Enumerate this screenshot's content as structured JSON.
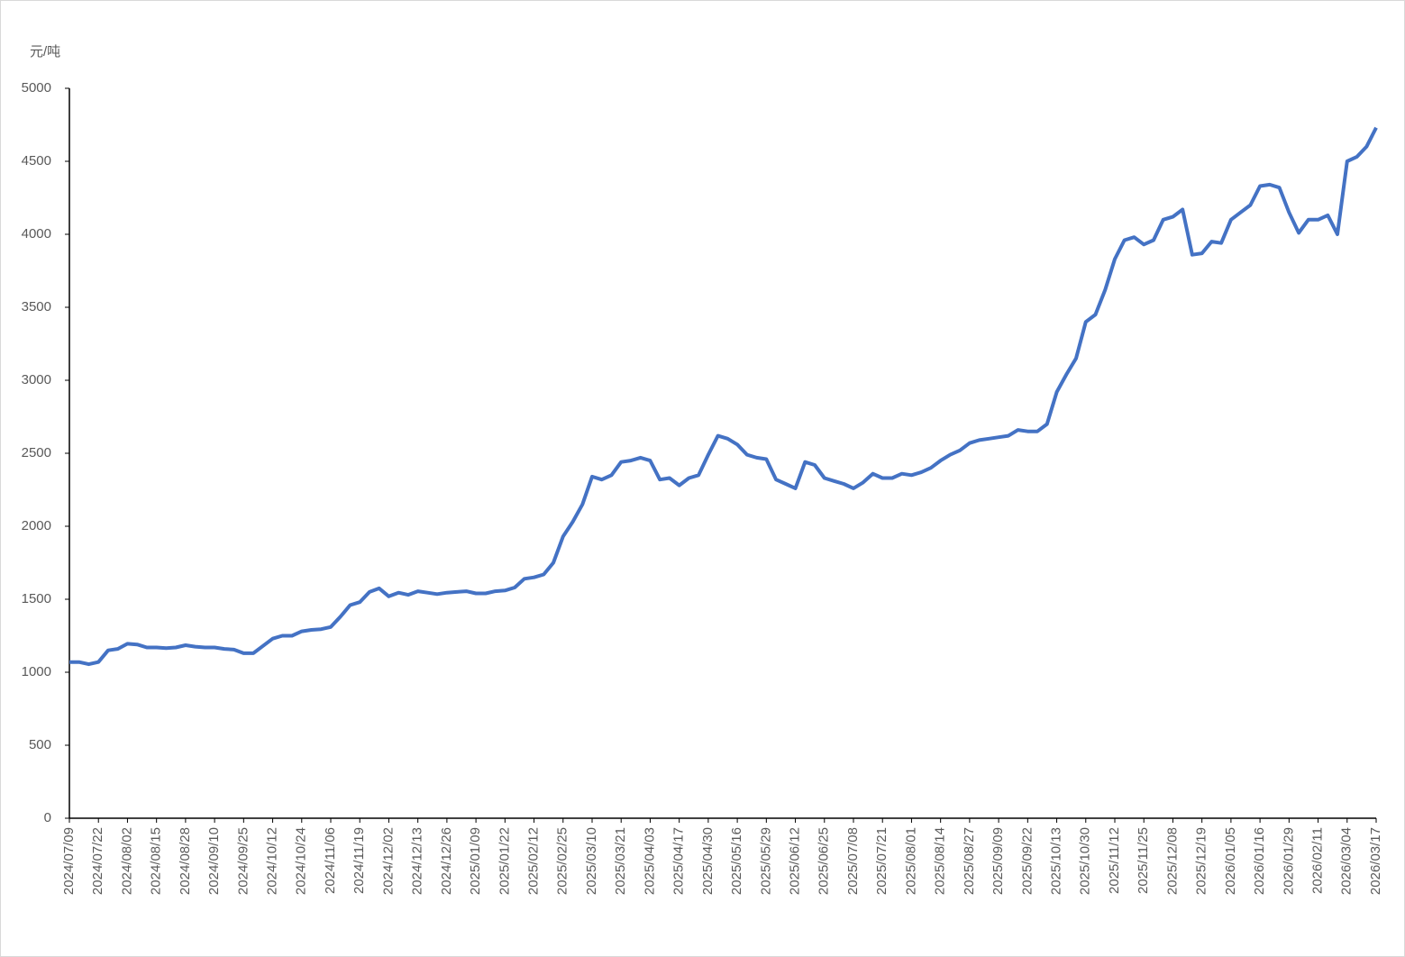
{
  "chart_data": {
    "type": "line",
    "y_label": "元/吨",
    "categories": [
      "2024/07/09",
      null,
      null,
      "2024/07/22",
      null,
      null,
      "2024/08/02",
      null,
      null,
      "2024/08/15",
      null,
      null,
      "2024/08/28",
      null,
      null,
      "2024/09/10",
      null,
      null,
      "2024/09/25",
      null,
      null,
      "2024/10/12",
      null,
      null,
      "2024/10/24",
      null,
      null,
      "2024/11/06",
      null,
      null,
      "2024/11/19",
      null,
      null,
      "2024/12/02",
      null,
      null,
      "2024/12/13",
      null,
      null,
      "2024/12/26",
      null,
      null,
      "2025/01/09",
      null,
      null,
      "2025/01/22",
      null,
      null,
      "2025/02/12",
      null,
      null,
      "2025/02/25",
      null,
      null,
      "2025/03/10",
      null,
      null,
      "2025/03/21",
      null,
      null,
      "2025/04/03",
      null,
      null,
      "2025/04/17",
      null,
      null,
      "2025/04/30",
      null,
      null,
      "2025/05/16",
      null,
      null,
      "2025/05/29",
      null,
      null,
      "2025/06/12",
      null,
      null,
      "2025/06/25",
      null,
      null,
      "2025/07/08",
      null,
      null,
      "2025/07/21",
      null,
      null,
      "2025/08/01",
      null,
      null,
      "2025/08/14",
      null,
      null,
      "2025/08/27",
      null,
      null,
      "2025/09/09",
      null,
      null,
      "2025/09/22",
      null,
      null,
      "2025/10/13",
      null,
      null,
      "2025/10/30",
      null,
      null,
      "2025/11/12",
      null,
      null,
      "2025/11/25",
      null,
      null,
      "2025/12/08",
      null,
      null,
      "2025/12/19",
      null,
      null,
      "2026/01/05",
      null,
      null,
      "2026/01/16",
      null,
      null,
      "2026/01/29",
      null,
      null,
      "2026/02/11",
      null,
      null,
      "2026/03/04",
      null,
      null,
      "2026/03/17"
    ],
    "series": [
      {
        "color": "#4472c4",
        "values": [
          1070,
          1070,
          1055,
          1070,
          1150,
          1160,
          1195,
          1190,
          1170,
          1170,
          1165,
          1170,
          1185,
          1175,
          1170,
          1170,
          1160,
          1155,
          1130,
          1130,
          1180,
          1230,
          1250,
          1250,
          1280,
          1290,
          1295,
          1310,
          1380,
          1460,
          1480,
          1550,
          1575,
          1520,
          1545,
          1530,
          1555,
          1545,
          1535,
          1545,
          1550,
          1555,
          1540,
          1540,
          1555,
          1560,
          1580,
          1640,
          1650,
          1670,
          1750,
          1930,
          2030,
          2150,
          2340,
          2320,
          2350,
          2440,
          2450,
          2470,
          2450,
          2320,
          2330,
          2280,
          2330,
          2350,
          2490,
          2620,
          2600,
          2560,
          2490,
          2470,
          2460,
          2320,
          2290,
          2260,
          2440,
          2420,
          2330,
          2310,
          2290,
          2260,
          2300,
          2360,
          2330,
          2330,
          2360,
          2350,
          2370,
          2400,
          2450,
          2490,
          2520,
          2570,
          2590,
          2600,
          2610,
          2620,
          2660,
          2650,
          2650,
          2700,
          2920,
          3040,
          3150,
          3400,
          3450,
          3620,
          3830,
          3960,
          3980,
          3930,
          3960,
          4100,
          4120,
          4170,
          3860,
          3870,
          3950,
          3940,
          4100,
          4150,
          4200,
          4330,
          4340,
          4320,
          4150,
          4010,
          4100,
          4100,
          4130,
          4000,
          4500,
          4530,
          4600,
          4730
        ]
      }
    ],
    "ylim": [
      0,
      5000
    ],
    "yticks": [
      0,
      500,
      1000,
      1500,
      2000,
      2500,
      3000,
      3500,
      4000,
      4500,
      5000
    ],
    "grid": false
  }
}
